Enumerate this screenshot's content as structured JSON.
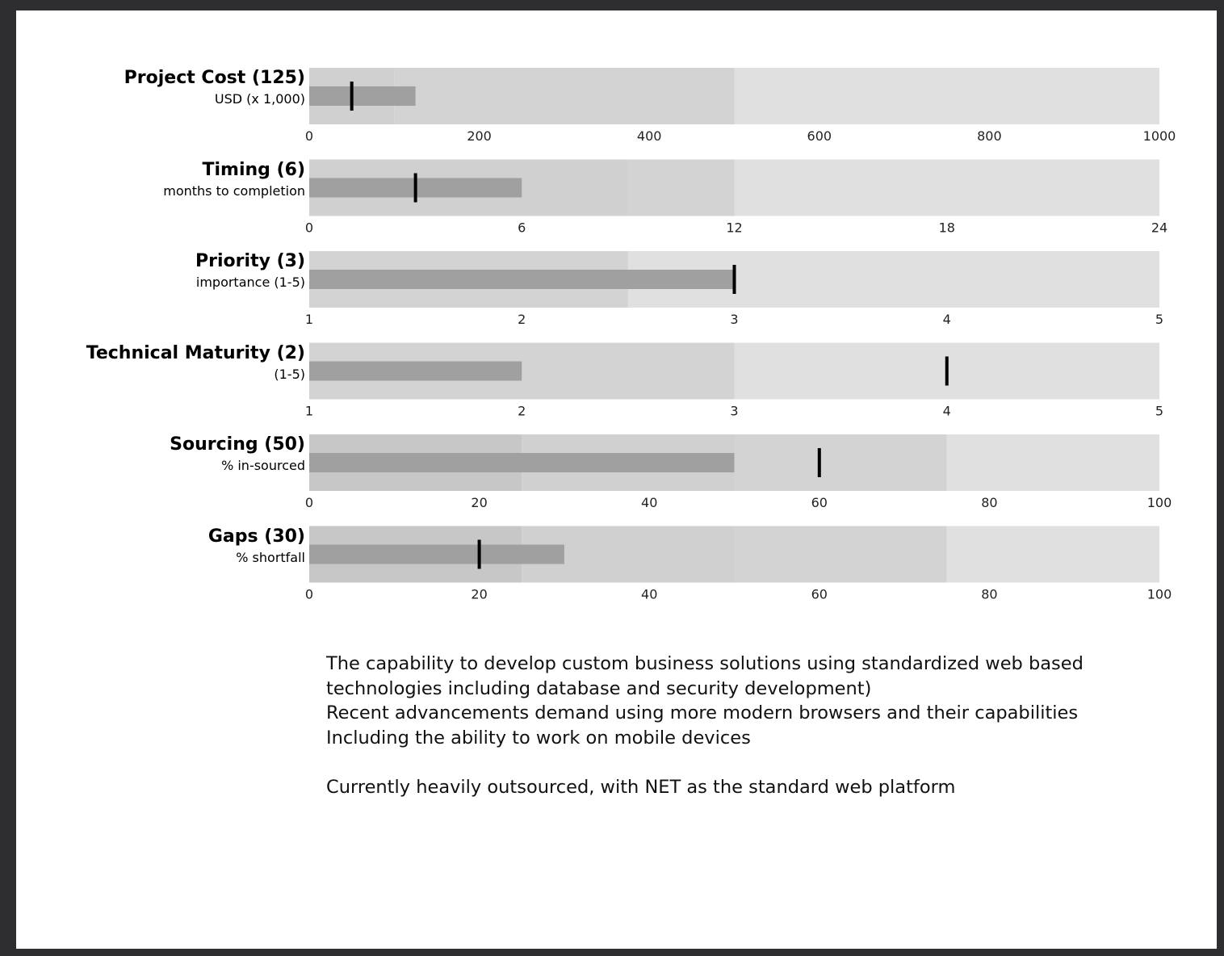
{
  "chart_data": [
    {
      "type": "bullet",
      "title": "Project Cost (125)",
      "subtitle": "USD (x 1,000)",
      "range": [
        0,
        1000
      ],
      "ticks": [
        0,
        200,
        400,
        600,
        800,
        1000
      ],
      "bands": [
        100,
        500,
        1000
      ],
      "value": 125,
      "target": 50
    },
    {
      "type": "bullet",
      "title": "Timing (6)",
      "subtitle": "months to completion",
      "range": [
        0,
        24
      ],
      "ticks": [
        0,
        6,
        12,
        18,
        24
      ],
      "bands": [
        9,
        12,
        24
      ],
      "value": 6,
      "target": 3
    },
    {
      "type": "bullet",
      "title": "Priority (3)",
      "subtitle": "importance (1-5)",
      "range": [
        1,
        5
      ],
      "ticks": [
        1,
        2,
        3,
        4,
        5
      ],
      "bands": [
        2.5,
        5
      ],
      "value": 3,
      "target": 3
    },
    {
      "type": "bullet",
      "title": "Technical Maturity (2)",
      "subtitle": "(1-5)",
      "range": [
        1,
        5
      ],
      "ticks": [
        1,
        2,
        3,
        4,
        5
      ],
      "bands": [
        3,
        5
      ],
      "value": 2,
      "target": 4
    },
    {
      "type": "bullet",
      "title": "Sourcing (50)",
      "subtitle": "% in-sourced",
      "range": [
        0,
        100
      ],
      "ticks": [
        0,
        20,
        40,
        60,
        80,
        100
      ],
      "bands": [
        25,
        50,
        75,
        100
      ],
      "value": 50,
      "target": 60
    },
    {
      "type": "bullet",
      "title": "Gaps (30)",
      "subtitle": "% shortfall",
      "range": [
        0,
        100
      ],
      "ticks": [
        0,
        20,
        40,
        60,
        80,
        100
      ],
      "bands": [
        25,
        50,
        75,
        100
      ],
      "value": 30,
      "target": 20
    }
  ],
  "colors": {
    "band_shades": [
      "#c7c7c7",
      "#d0d0d0",
      "#d3d3d3",
      "#e0e0e0"
    ],
    "value_bar": "#a0a0a0",
    "target_marker": "#000000"
  },
  "notes": [
    "The capability to develop custom business solutions using standardized web based technologies including database and security development)",
    "Recent advancements demand using more modern browsers and their capabilities",
    "Including the ability to work on mobile devices",
    "",
    "Currently heavily outsourced, with NET as the standard web platform"
  ]
}
